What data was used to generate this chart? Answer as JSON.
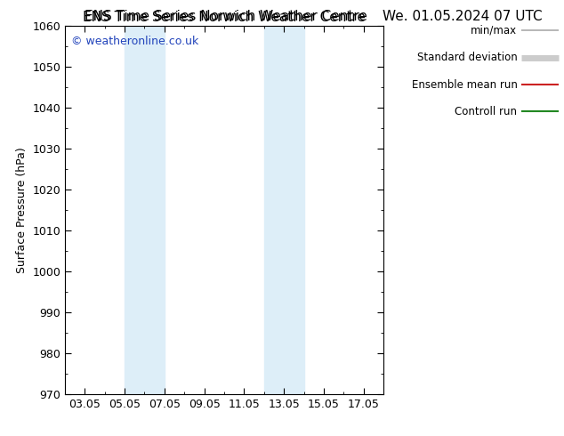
{
  "title_left": "ENS Time Series Norwich Weather Centre",
  "title_right": "We. 01.05.2024 07 UTC",
  "ylabel": "Surface Pressure (hPa)",
  "ylim": [
    970,
    1060
  ],
  "yticks": [
    970,
    980,
    990,
    1000,
    1010,
    1020,
    1030,
    1040,
    1050,
    1060
  ],
  "xlim": [
    1.0,
    17.0
  ],
  "xtick_positions": [
    2,
    4,
    6,
    8,
    10,
    12,
    14,
    16
  ],
  "xtick_labels": [
    "03.05",
    "05.05",
    "07.05",
    "09.05",
    "11.05",
    "13.05",
    "15.05",
    "17.05"
  ],
  "shade_bands": [
    {
      "x_start": 4.0,
      "x_end": 6.0,
      "color": "#ddeef8"
    },
    {
      "x_start": 11.0,
      "x_end": 13.0,
      "color": "#ddeef8"
    }
  ],
  "watermark": "© weatheronline.co.uk",
  "watermark_color": "#2244bb",
  "legend_items": [
    {
      "label": "min/max",
      "color": "#aaaaaa",
      "lw": 1.2
    },
    {
      "label": "Standard deviation",
      "color": "#cccccc",
      "lw": 5
    },
    {
      "label": "Ensemble mean run",
      "color": "#cc2222",
      "lw": 1.5
    },
    {
      "label": "Controll run",
      "color": "#228822",
      "lw": 1.5
    }
  ],
  "background_color": "#ffffff",
  "tick_color": "#000000",
  "font_family": "DejaVu Sans"
}
